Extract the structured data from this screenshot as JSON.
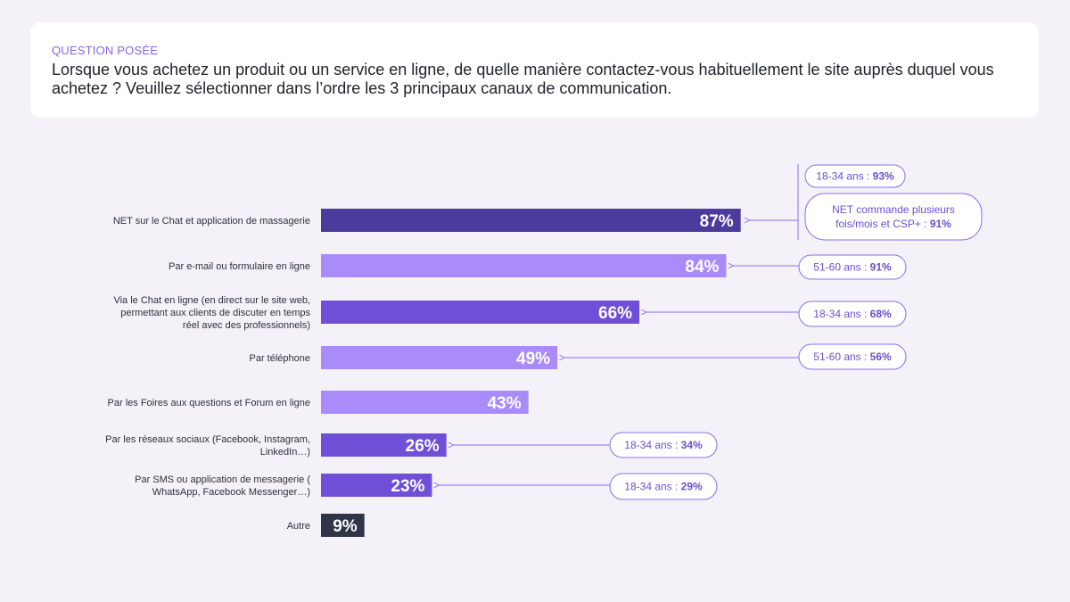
{
  "question": {
    "label": "QUESTION POSÉE",
    "text": "Lorsque vous achetez un produit ou un service en ligne, de quelle manière contactez-vous habituellement le site auprès duquel vous achetez ? Veuillez sélectionner dans l’ordre les 3 principaux canaux de communication."
  },
  "colors": {
    "dark_purple": "#4c3a9c",
    "medium_purple": "#6e4fd6",
    "light_purple": "#a98cf9",
    "navy": "#2f3547",
    "callout": "#8a6ef0"
  },
  "chart_data": {
    "type": "bar",
    "orientation": "horizontal",
    "xlim": [
      0,
      100
    ],
    "unit": "%",
    "categories": [
      [
        "NET sur le Chat et application de massagerie"
      ],
      [
        "Par e-mail ou formulaire en ligne"
      ],
      [
        "Via le Chat en ligne (en direct sur le site web,",
        "permettant aux clients de discuter en temps",
        "réel avec des professionnels)"
      ],
      [
        "Par téléphone"
      ],
      [
        "Par les Foires aux questions et Forum en ligne"
      ],
      [
        "Par les réseaux sociaux (Facebook, Instagram,",
        "LinkedIn…)"
      ],
      [
        "Par SMS ou application de messagerie (",
        "WhatsApp, Facebook Messenger…)"
      ],
      [
        "Autre"
      ]
    ],
    "values": [
      87,
      84,
      66,
      49,
      43,
      26,
      23,
      9
    ],
    "value_labels": [
      "87%",
      "84%",
      "66%",
      "49%",
      "43%",
      "26%",
      "23%",
      "9%"
    ],
    "bar_color_keys": [
      "dark_purple",
      "light_purple",
      "medium_purple",
      "light_purple",
      "light_purple",
      "medium_purple",
      "medium_purple",
      "navy"
    ],
    "callouts": [
      {
        "bar": 0,
        "lines": [
          [
            {
              "t": "18-34 ans : "
            },
            {
              "t": "93%",
              "b": true
            }
          ]
        ]
      },
      {
        "bar": 0,
        "lines": [
          [
            {
              "t": "NET commande plusieurs"
            }
          ],
          [
            {
              "t": "fois/mois et CSP+ :  "
            },
            {
              "t": "91%",
              "b": true
            }
          ]
        ]
      },
      {
        "bar": 1,
        "lines": [
          [
            {
              "t": "51-60 ans : "
            },
            {
              "t": "91%",
              "b": true
            }
          ]
        ]
      },
      {
        "bar": 2,
        "lines": [
          [
            {
              "t": "18-34 ans : "
            },
            {
              "t": "68%",
              "b": true
            }
          ]
        ]
      },
      {
        "bar": 3,
        "lines": [
          [
            {
              "t": "51-60 ans : "
            },
            {
              "t": "56%",
              "b": true
            }
          ]
        ]
      },
      {
        "bar": 5,
        "lines": [
          [
            {
              "t": "18-34 ans : "
            },
            {
              "t": "34%",
              "b": true
            }
          ]
        ]
      },
      {
        "bar": 6,
        "lines": [
          [
            {
              "t": "18-34 ans : "
            },
            {
              "t": "29%",
              "b": true
            }
          ]
        ]
      }
    ]
  }
}
